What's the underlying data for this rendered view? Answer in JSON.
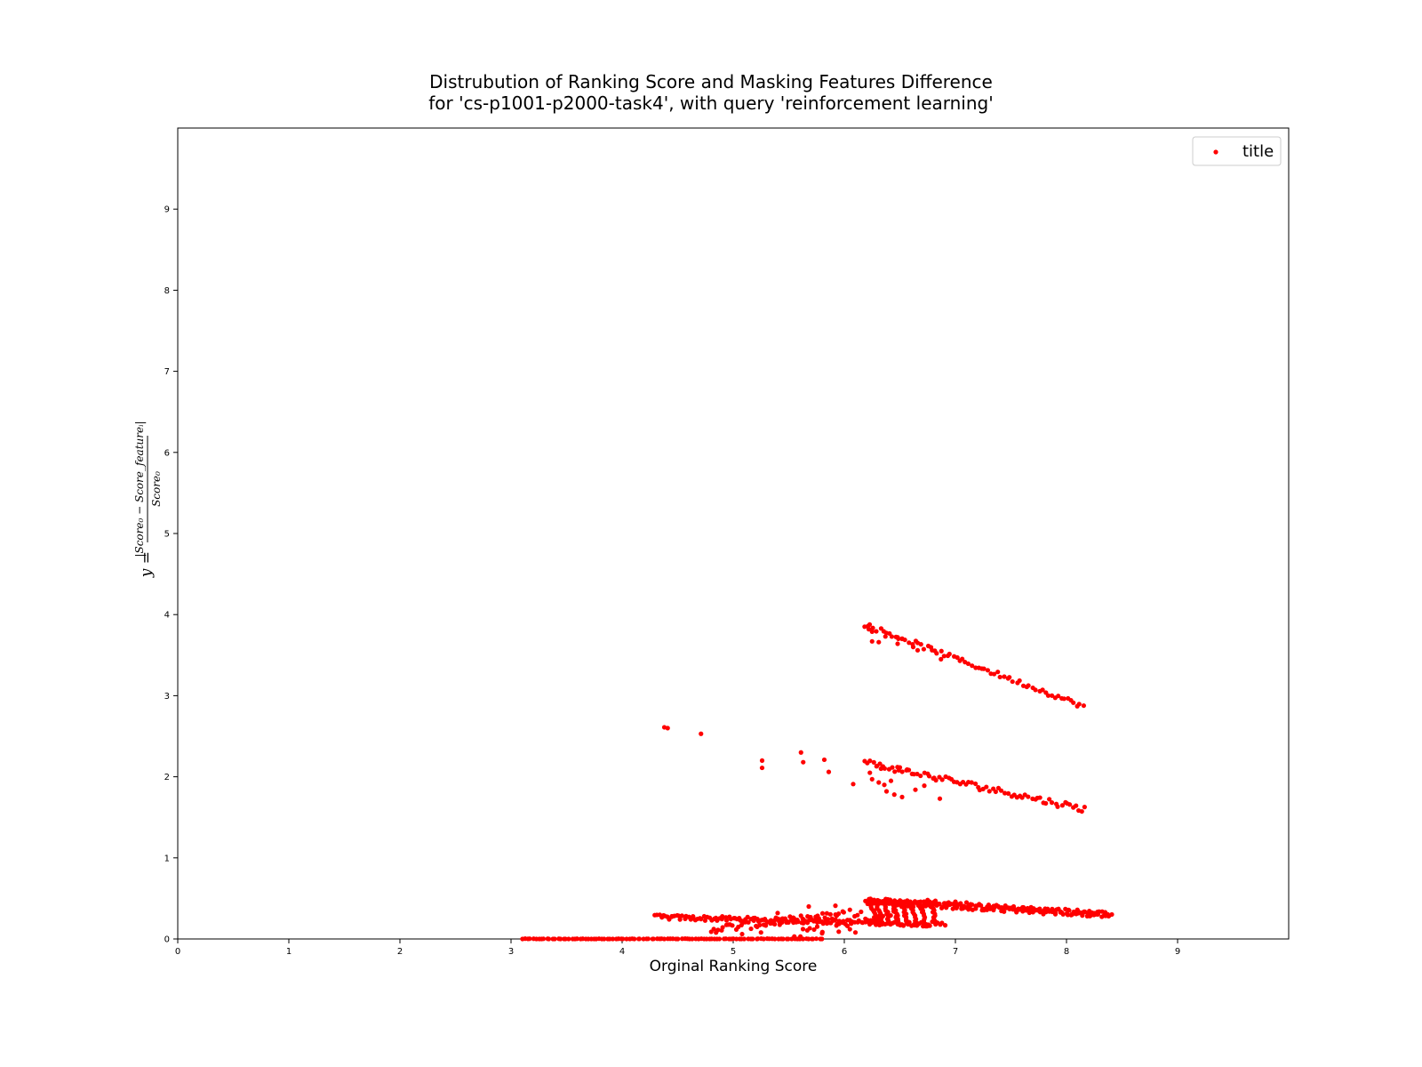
{
  "chart_data": {
    "type": "scatter",
    "title_lines": [
      "Distrubution of Ranking Score and Masking Features Difference",
      "for 'cs-p1001-p2000-task4', with query 'reinforcement learning'"
    ],
    "xlabel": "Orginal Ranking Score",
    "ylabel": {
      "prefix": "y =",
      "numerator": "|Score₀ − Score_featureᵢ|",
      "denominator": "Score₀"
    },
    "xlim": [
      0,
      10
    ],
    "ylim": [
      0,
      10
    ],
    "xticks": [
      "0",
      "1",
      "2",
      "3",
      "4",
      "5",
      "6",
      "7",
      "8",
      "9"
    ],
    "yticks": [
      "0",
      "1",
      "2",
      "3",
      "4",
      "5",
      "6",
      "7",
      "8",
      "9"
    ],
    "grid": false,
    "legend_position": "top-right",
    "series": [
      {
        "name": "title",
        "color": "#ff0000",
        "clusters": [
          {
            "kind": "line",
            "x_start": 3.1,
            "x_end": 5.8,
            "y_start": 0.0,
            "y_end": 0.0,
            "count": 110,
            "jitter": 0.004
          },
          {
            "kind": "line",
            "x_start": 4.3,
            "x_end": 6.9,
            "y_start": 0.27,
            "y_end": 0.18,
            "count": 150,
            "jitter": 0.03
          },
          {
            "kind": "line",
            "x_start": 4.8,
            "x_end": 6.0,
            "y_start": 0.12,
            "y_end": 0.3,
            "count": 55,
            "jitter": 0.05
          },
          {
            "kind": "line",
            "x_start": 5.6,
            "x_end": 6.7,
            "y_start": 0.1,
            "y_end": 0.42,
            "count": 35,
            "jitter": 0.08
          },
          {
            "kind": "line",
            "x_start": 6.2,
            "x_end": 8.4,
            "y_start": 0.47,
            "y_end": 0.3,
            "count": 220,
            "jitter": 0.04
          },
          {
            "kind": "columns",
            "x_list": [
              6.24,
              6.29,
              6.36,
              6.44,
              6.52,
              6.6,
              6.68,
              6.78
            ],
            "y_low": 0.18,
            "y_high": 0.46,
            "count_each": 14,
            "jitter": 0.012
          },
          {
            "kind": "line",
            "x_start": 6.18,
            "x_end": 8.15,
            "y_start": 3.88,
            "y_end": 2.87,
            "count": 70,
            "jitter": 0.03
          },
          {
            "kind": "line",
            "x_start": 6.18,
            "x_end": 8.17,
            "y_start": 2.18,
            "y_end": 1.6,
            "count": 75,
            "jitter": 0.04
          }
        ],
        "points": [
          [
            4.38,
            2.61
          ],
          [
            4.41,
            2.6
          ],
          [
            4.71,
            2.53
          ],
          [
            5.26,
            2.2
          ],
          [
            5.26,
            2.11
          ],
          [
            5.61,
            2.3
          ],
          [
            5.63,
            2.18
          ],
          [
            5.82,
            2.21
          ],
          [
            5.86,
            2.06
          ],
          [
            6.08,
            1.91
          ],
          [
            6.22,
            3.82
          ],
          [
            6.25,
            3.79
          ],
          [
            6.25,
            3.67
          ],
          [
            6.31,
            3.66
          ],
          [
            6.37,
            3.73
          ],
          [
            6.48,
            3.72
          ],
          [
            6.48,
            3.64
          ],
          [
            6.52,
            3.7
          ],
          [
            6.62,
            3.6
          ],
          [
            6.66,
            3.56
          ],
          [
            6.79,
            3.56
          ],
          [
            6.87,
            3.45
          ],
          [
            6.23,
            2.05
          ],
          [
            6.25,
            1.97
          ],
          [
            6.29,
            2.13
          ],
          [
            6.31,
            1.93
          ],
          [
            6.33,
            2.1
          ],
          [
            6.36,
            1.9
          ],
          [
            6.38,
            1.82
          ],
          [
            6.42,
            1.95
          ],
          [
            6.45,
            1.78
          ],
          [
            6.49,
            2.08
          ],
          [
            6.52,
            1.75
          ],
          [
            6.56,
            2.08
          ],
          [
            6.64,
            1.84
          ],
          [
            6.72,
            1.89
          ],
          [
            6.8,
            1.98
          ],
          [
            6.86,
            1.73
          ],
          [
            5.08,
            0.06
          ],
          [
            5.25,
            0.08
          ],
          [
            5.55,
            0.03
          ],
          [
            5.8,
            0.07
          ],
          [
            5.95,
            0.09
          ],
          [
            6.05,
            0.12
          ],
          [
            6.1,
            0.08
          ],
          [
            5.4,
            0.32
          ],
          [
            5.68,
            0.4
          ],
          [
            5.92,
            0.41
          ],
          [
            6.05,
            0.36
          ],
          [
            6.75,
            0.48
          ],
          [
            6.82,
            0.47
          ],
          [
            6.9,
            0.44
          ],
          [
            7.0,
            0.46
          ],
          [
            7.1,
            0.45
          ]
        ]
      }
    ]
  }
}
